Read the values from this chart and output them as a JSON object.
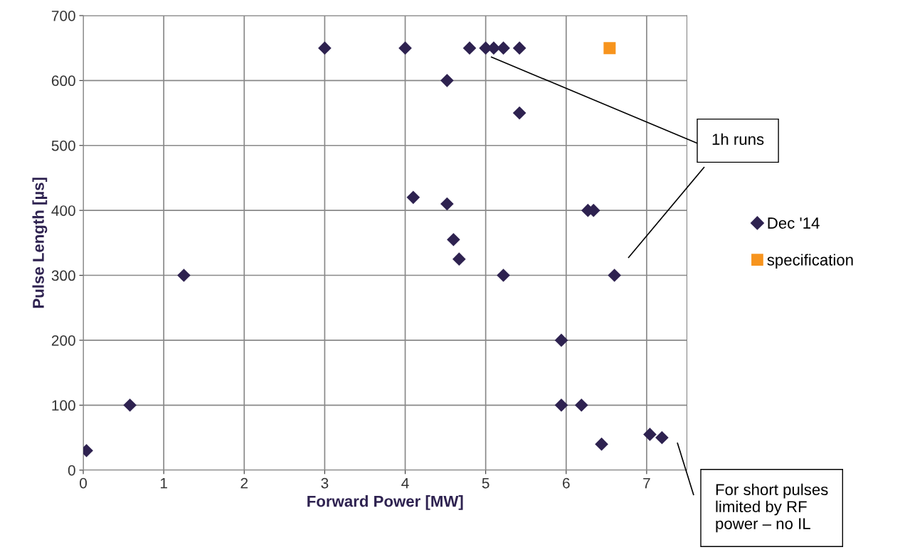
{
  "chart_data": {
    "type": "scatter",
    "xlabel": "Forward Power [MW]",
    "ylabel": "Pulse Length [µs]",
    "xlim": [
      0,
      7.5
    ],
    "xticks": [
      0,
      1,
      2,
      3,
      4,
      5,
      6,
      7
    ],
    "ylim": [
      0,
      700
    ],
    "yticks": [
      0,
      100,
      200,
      300,
      400,
      500,
      600,
      700
    ],
    "grid": true,
    "legend": "right",
    "series": [
      {
        "name": "Dec '14",
        "color": "#2e2250",
        "marker": "diamond",
        "x": [
          0.04,
          0.58,
          1.25,
          3.0,
          4.0,
          4.52,
          4.8,
          5.0,
          5.1,
          5.22,
          5.42,
          5.42,
          4.1,
          4.52,
          4.6,
          4.67,
          5.22,
          6.27,
          6.34,
          6.6,
          5.94,
          5.94,
          6.19,
          6.44,
          7.04,
          7.19
        ],
        "values": [
          30,
          100,
          300,
          650,
          650,
          600,
          650,
          650,
          650,
          650,
          650,
          550,
          420,
          410,
          355,
          325,
          300,
          400,
          400,
          300,
          200,
          100,
          100,
          40,
          55,
          50
        ]
      },
      {
        "name": "specification",
        "color": "#f7941d",
        "marker": "square",
        "x": [
          6.54
        ],
        "values": [
          650
        ]
      }
    ],
    "annotations": [
      "1h runs",
      "For short pulses\nlimited by RF\npower – no IL"
    ]
  }
}
